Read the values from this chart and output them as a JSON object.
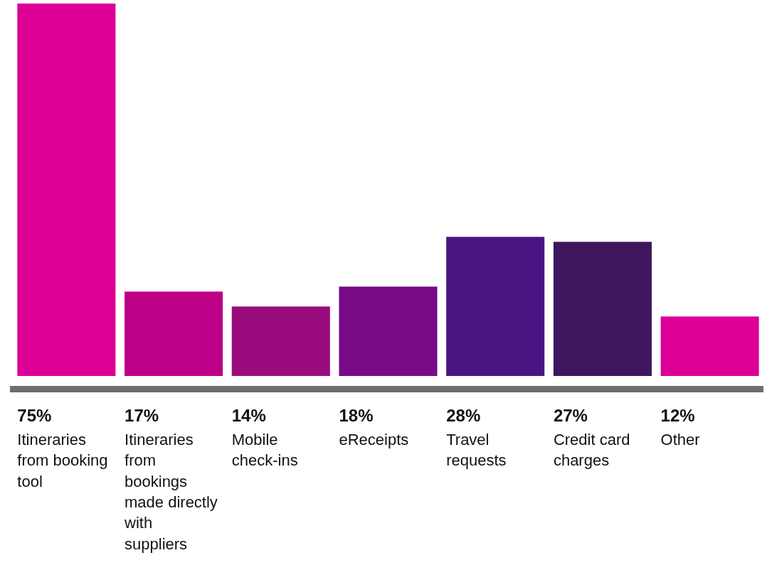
{
  "chart_data": {
    "type": "bar",
    "categories": [
      "Itineraries from booking tool",
      "Itineraries from bookings made directly with suppliers",
      "Mobile check-ins",
      "eReceipts",
      "Travel requests",
      "Credit card charges",
      "Other"
    ],
    "values": [
      75,
      17,
      14,
      18,
      28,
      27,
      12
    ],
    "colors": [
      "#dc0096",
      "#bd0087",
      "#9a0b7e",
      "#780a86",
      "#4a1582",
      "#3e175e",
      "#dc0096"
    ],
    "value_labels": [
      "75%",
      "17%",
      "14%",
      "18%",
      "28%",
      "27%",
      "12%"
    ],
    "grid": false,
    "legend": false
  }
}
